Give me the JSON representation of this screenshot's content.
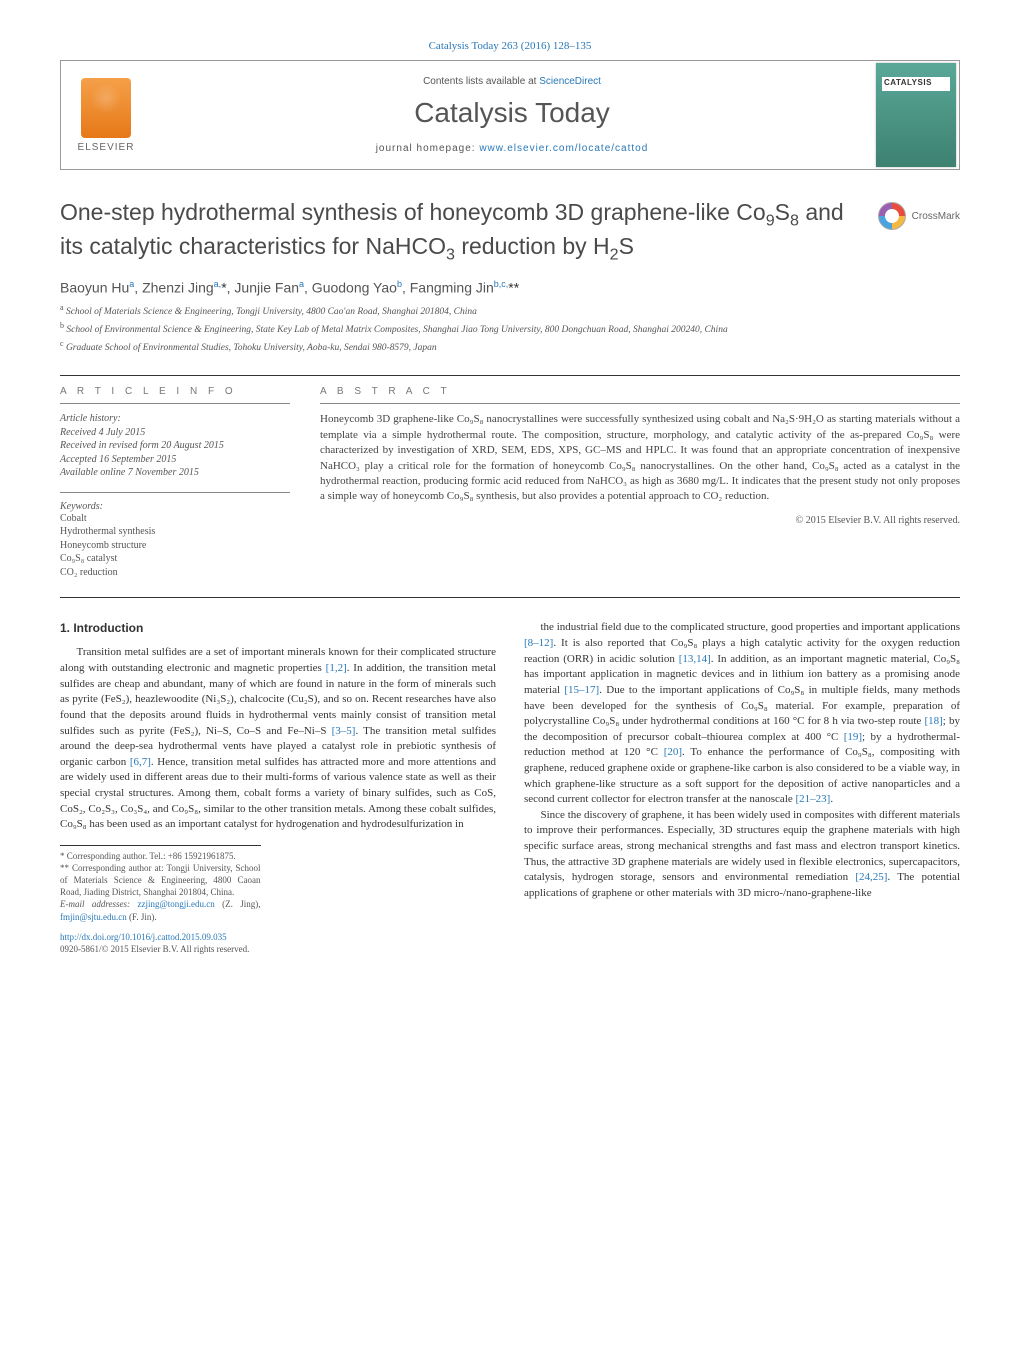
{
  "header": {
    "citation": "Catalysis Today 263 (2016) 128–135",
    "contents_prefix": "Contents lists available at ",
    "contents_link": "ScienceDirect",
    "journal": "Catalysis Today",
    "homepage_prefix": "journal homepage: ",
    "homepage_url": "www.elsevier.com/locate/cattod",
    "publisher": "ELSEVIER",
    "cover_label": "CATALYSIS"
  },
  "crossmark": "CrossMark",
  "title_html": "One-step hydrothermal synthesis of honeycomb 3D graphene-like Co<sub>9</sub>S<sub>8</sub> and its catalytic characteristics for NaHCO<sub>3</sub> reduction by H<sub>2</sub>S",
  "authors_html": "Baoyun Hu<sup>a</sup>, Zhenzi Jing<sup>a,</sup><span class='star'>*</span>, Junjie Fan<sup>a</sup>, Guodong Yao<sup>b</sup>, Fangming Jin<sup>b,c,</sup><span class='star'>**</span>",
  "affiliations": [
    {
      "sup": "a",
      "text": "School of Materials Science & Engineering, Tongji University, 4800 Cao'an Road, Shanghai 201804, China"
    },
    {
      "sup": "b",
      "text": "School of Environmental Science & Engineering, State Key Lab of Metal Matrix Composites, Shanghai Jiao Tong University, 800 Dongchuan Road, Shanghai 200240, China"
    },
    {
      "sup": "c",
      "text": "Graduate School of Environmental Studies, Tohoku University, Aoba-ku, Sendai 980-8579, Japan"
    }
  ],
  "info": {
    "head": "A R T I C L E   I N F O",
    "history_label": "Article history:",
    "history": [
      "Received 4 July 2015",
      "Received in revised form 20 August 2015",
      "Accepted 16 September 2015",
      "Available online 7 November 2015"
    ],
    "keywords_label": "Keywords:",
    "keywords": [
      "Cobalt",
      "Hydrothermal synthesis",
      "Honeycomb structure",
      "Co₉S₈ catalyst",
      "CO₂ reduction"
    ]
  },
  "abstract": {
    "head": "A B S T R A C T",
    "text": "Honeycomb 3D graphene-like Co₉S₈ nanocrystallines were successfully synthesized using cobalt and Na₂S·9H₂O as starting materials without a template via a simple hydrothermal route. The composition, structure, morphology, and catalytic activity of the as-prepared Co₉S₈ were characterized by investigation of XRD, SEM, EDS, XPS, GC–MS and HPLC. It was found that an appropriate concentration of inexpensive NaHCO₃ play a critical role for the formation of honeycomb Co₉S₈ nanocrystallines. On the other hand, Co₉S₈ acted as a catalyst in the hydrothermal reaction, producing formic acid reduced from NaHCO₃ as high as 3680 mg/L. It indicates that the present study not only proposes a simple way of honeycomb Co₉S₈ synthesis, but also provides a potential approach to CO₂ reduction.",
    "copyright": "© 2015 Elsevier B.V. All rights reserved."
  },
  "body": {
    "intro_head": "1. Introduction",
    "p1": "Transition metal sulfides are a set of important minerals known for their complicated structure along with outstanding electronic and magnetic properties [1,2]. In addition, the transition metal sulfides are cheap and abundant, many of which are found in nature in the form of minerals such as pyrite (FeS₂), heazlewoodite (Ni₃S₂), chalcocite (Cu₂S), and so on. Recent researches have also found that the deposits around fluids in hydrothermal vents mainly consist of transition metal sulfides such as pyrite (FeS₂), Ni–S, Co–S and Fe–Ni–S [3–5]. The transition metal sulfides around the deep-sea hydrothermal vents have played a catalyst role in prebiotic synthesis of organic carbon [6,7]. Hence, transition metal sulfides has attracted more and more attentions and are widely used in different areas due to their multi-forms of various valence state as well as their special crystal structures. Among them, cobalt forms a variety of binary sulfides, such as CoS, CoS₂, Co₂S₃, Co₃S₄, and Co₉S₈, similar to the other transition metals. Among these cobalt sulfides, Co₉S₈ has been used as an important catalyst for hydrogenation and hydrodesulfurization in",
    "p2": "the industrial field due to the complicated structure, good properties and important applications [8–12]. It is also reported that Co₉S₈ plays a high catalytic activity for the oxygen reduction reaction (ORR) in acidic solution [13,14]. In addition, as an important magnetic material, Co₉S₈ has important application in magnetic devices and in lithium ion battery as a promising anode material [15–17]. Due to the important applications of Co₉S₈ in multiple fields, many methods have been developed for the synthesis of Co₉S₈ material. For example, preparation of polycrystalline Co₉S₈ under hydrothermal conditions at 160 °C for 8 h via two-step route [18]; by the decomposition of precursor cobalt–thiourea complex at 400 °C [19]; by a hydrothermal-reduction method at 120 °C [20]. To enhance the performance of Co₉S₈, compositing with graphene, reduced graphene oxide or graphene-like carbon is also considered to be a viable way, in which graphene-like structure as a soft support for the deposition of active nanoparticles and a second current collector for electron transfer at the nanoscale [21–23].",
    "p3": "Since the discovery of graphene, it has been widely used in composites with different materials to improve their performances. Especially, 3D structures equip the graphene materials with high specific surface areas, strong mechanical strengths and fast mass and electron transport kinetics. Thus, the attractive 3D graphene materials are widely used in flexible electronics, supercapacitors, catalysis, hydrogen storage, sensors and environmental remediation [24,25]. The potential applications of graphene or other materials with 3D micro-/nano-graphene-like"
  },
  "footnotes": {
    "c1": "* Corresponding author. Tel.: +86 15921961875.",
    "c2": "** Corresponding author at: Tongji University, School of Materials Science & Engineering, 4800 Caoan Road, Jiading District, Shanghai 201804, China.",
    "email_label": "E-mail addresses: ",
    "email1": "zzjing@tongji.edu.cn",
    "email1_who": " (Z. Jing), ",
    "email2": "fmjin@sjtu.edu.cn",
    "email2_who": " (F. Jin)."
  },
  "footer": {
    "doi": "http://dx.doi.org/10.1016/j.cattod.2015.09.035",
    "issn_line": "0920-5861/© 2015 Elsevier B.V. All rights reserved."
  },
  "refs": {
    "r12": "[1,2]",
    "r35": "[3–5]",
    "r67": "[6,7]",
    "r812": "[8–12]",
    "r1314": "[13,14]",
    "r1517": "[15–17]",
    "r18": "[18]",
    "r19": "[19]",
    "r20": "[20]",
    "r2123": "[21–23]",
    "r2425": "[24,25]"
  },
  "colors": {
    "link": "#2878b8",
    "text": "#333333",
    "muted": "#555555",
    "cover_bg": "#4a9484",
    "elsevier_orange": "#e67817"
  }
}
